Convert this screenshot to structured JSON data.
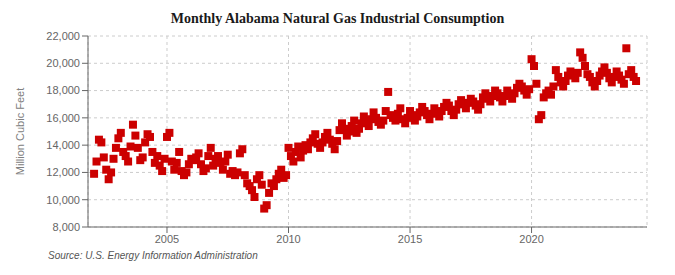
{
  "chart_data": {
    "type": "scatter",
    "title": "Monthly Alabama Natural Gas Industrial Consumption",
    "y_label": "Million  Cubic Feet",
    "annotations": [
      "Source: U.S. Energy Information Administration"
    ],
    "color": "#cc0000",
    "marker": "square",
    "grid": true,
    "xlim": [
      2001.75,
      2024.75
    ],
    "xticks": [
      2005,
      2010,
      2015,
      2020
    ],
    "ylim": [
      8000,
      22000
    ],
    "yticks": [
      {
        "value": 8000,
        "label": "8,000"
      },
      {
        "value": 10000,
        "label": "10,000"
      },
      {
        "value": 12000,
        "label": "12,000"
      },
      {
        "value": 14000,
        "label": "14,000"
      },
      {
        "value": 16000,
        "label": "16,000"
      },
      {
        "value": 18000,
        "label": "18,000"
      },
      {
        "value": 20000,
        "label": "20,000"
      },
      {
        "value": 22000,
        "label": "22,000"
      }
    ],
    "x": [
      2002.0,
      2002.1,
      2002.2,
      2002.3,
      2002.4,
      2002.5,
      2002.6,
      2002.7,
      2002.8,
      2002.9,
      2003.0,
      2003.1,
      2003.2,
      2003.3,
      2003.4,
      2003.5,
      2003.6,
      2003.7,
      2003.8,
      2003.9,
      2004.0,
      2004.1,
      2004.2,
      2004.3,
      2004.4,
      2004.5,
      2004.6,
      2004.7,
      2004.8,
      2004.9,
      2005.0,
      2005.1,
      2005.2,
      2005.3,
      2005.4,
      2005.5,
      2005.6,
      2005.7,
      2005.8,
      2005.9,
      2006.0,
      2006.1,
      2006.2,
      2006.3,
      2006.4,
      2006.5,
      2006.6,
      2006.7,
      2006.8,
      2006.9,
      2007.0,
      2007.1,
      2007.2,
      2007.3,
      2007.4,
      2007.5,
      2007.6,
      2007.7,
      2007.8,
      2007.9,
      2008.0,
      2008.1,
      2008.2,
      2008.3,
      2008.4,
      2008.5,
      2008.6,
      2008.7,
      2008.8,
      2008.9,
      2009.0,
      2009.1,
      2009.2,
      2009.3,
      2009.4,
      2009.5,
      2009.6,
      2009.7,
      2009.8,
      2009.9,
      2010.0,
      2010.1,
      2010.2,
      2010.3,
      2010.4,
      2010.5,
      2010.6,
      2010.7,
      2010.8,
      2010.9,
      2011.0,
      2011.1,
      2011.2,
      2011.3,
      2011.4,
      2011.5,
      2011.6,
      2011.7,
      2011.8,
      2011.9,
      2012.0,
      2012.1,
      2012.2,
      2012.3,
      2012.4,
      2012.5,
      2012.6,
      2012.7,
      2012.8,
      2012.9,
      2013.0,
      2013.1,
      2013.2,
      2013.3,
      2013.4,
      2013.5,
      2013.6,
      2013.7,
      2013.8,
      2013.9,
      2014.0,
      2014.1,
      2014.2,
      2014.3,
      2014.4,
      2014.5,
      2014.6,
      2014.7,
      2014.8,
      2014.9,
      2015.0,
      2015.1,
      2015.2,
      2015.3,
      2015.4,
      2015.5,
      2015.6,
      2015.7,
      2015.8,
      2015.9,
      2016.0,
      2016.1,
      2016.2,
      2016.3,
      2016.4,
      2016.5,
      2016.6,
      2016.7,
      2016.8,
      2016.9,
      2017.0,
      2017.1,
      2017.2,
      2017.3,
      2017.4,
      2017.5,
      2017.6,
      2017.7,
      2017.8,
      2017.9,
      2018.0,
      2018.1,
      2018.2,
      2018.3,
      2018.4,
      2018.5,
      2018.6,
      2018.7,
      2018.8,
      2018.9,
      2019.0,
      2019.1,
      2019.2,
      2019.3,
      2019.4,
      2019.5,
      2019.6,
      2019.7,
      2019.8,
      2019.9,
      2020.0,
      2020.1,
      2020.2,
      2020.3,
      2020.4,
      2020.5,
      2020.6,
      2020.7,
      2020.8,
      2020.9,
      2021.0,
      2021.1,
      2021.2,
      2021.3,
      2021.4,
      2021.5,
      2021.6,
      2021.7,
      2021.8,
      2021.9,
      2022.0,
      2022.1,
      2022.2,
      2022.3,
      2022.4,
      2022.5,
      2022.6,
      2022.7,
      2022.8,
      2022.9,
      2023.0,
      2023.1,
      2023.2,
      2023.3,
      2023.4,
      2023.5,
      2023.6,
      2023.7,
      2023.8,
      2023.9,
      2024.0,
      2024.1,
      2024.2,
      2024.3
    ],
    "values": [
      11900,
      12800,
      14400,
      14200,
      13100,
      12200,
      11500,
      12000,
      13000,
      13800,
      14500,
      14900,
      13500,
      13200,
      12800,
      13900,
      15500,
      14700,
      13800,
      12900,
      13100,
      14200,
      14800,
      14600,
      13500,
      12700,
      13200,
      12500,
      12100,
      13000,
      14600,
      14900,
      12800,
      12200,
      12700,
      13500,
      12100,
      11800,
      12000,
      12600,
      13000,
      12900,
      13100,
      13400,
      12600,
      12100,
      12300,
      13200,
      13800,
      12500,
      13000,
      13200,
      12700,
      12200,
      12800,
      13300,
      11900,
      12100,
      11800,
      12000,
      13400,
      13700,
      11800,
      11200,
      11000,
      10700,
      10200,
      11500,
      11800,
      11100,
      9350,
      9600,
      10500,
      11200,
      11000,
      11500,
      11900,
      12200,
      11600,
      11800,
      13800,
      13200,
      12800,
      13500,
      13900,
      13100,
      13600,
      14000,
      13700,
      14200,
      14500,
      14800,
      14100,
      13800,
      14200,
      14600,
      14900,
      14400,
      14100,
      13700,
      14300,
      15100,
      15600,
      15200,
      14700,
      15000,
      15400,
      15800,
      14900,
      15200,
      15600,
      16100,
      15800,
      15400,
      15900,
      16400,
      16000,
      15700,
      15500,
      15800,
      16500,
      17900,
      16200,
      16000,
      15800,
      16300,
      16700,
      15900,
      15600,
      16000,
      16500,
      16200,
      15800,
      16100,
      16400,
      16800,
      16500,
      16200,
      15900,
      16300,
      16700,
      16400,
      16100,
      16500,
      16800,
      17100,
      16900,
      16500,
      16200,
      16600,
      17000,
      17300,
      17000,
      16700,
      17100,
      17400,
      17200,
      16900,
      16600,
      17000,
      17500,
      17800,
      17400,
      17200,
      17600,
      18000,
      17800,
      17500,
      17200,
      17600,
      18000,
      17700,
      17400,
      17800,
      18200,
      18500,
      18300,
      18000,
      17700,
      18100,
      20300,
      19800,
      18500,
      15900,
      16200,
      17500,
      17800,
      18000,
      17700,
      18300,
      19500,
      19000,
      18600,
      18300,
      18700,
      19100,
      19400,
      19200,
      18900,
      19300,
      20800,
      20400,
      19800,
      19200,
      19000,
      18600,
      18300,
      18700,
      19100,
      19400,
      19700,
      19300,
      18900,
      18600,
      19000,
      19400,
      19100,
      18800,
      18500,
      21100,
      19200,
      19500,
      19000,
      18700
    ]
  }
}
